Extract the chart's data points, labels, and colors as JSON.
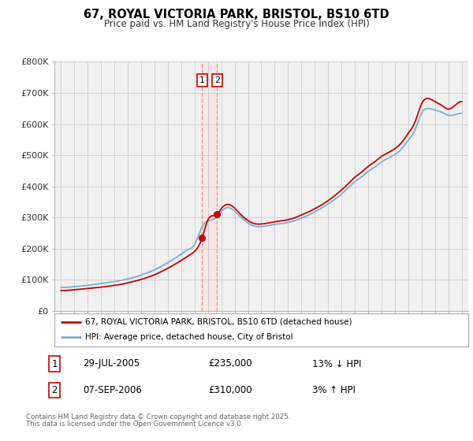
{
  "title": "67, ROYAL VICTORIA PARK, BRISTOL, BS10 6TD",
  "subtitle": "Price paid vs. HM Land Registry's House Price Index (HPI)",
  "legend_line1": "67, ROYAL VICTORIA PARK, BRISTOL, BS10 6TD (detached house)",
  "legend_line2": "HPI: Average price, detached house, City of Bristol",
  "footnote1": "Contains HM Land Registry data © Crown copyright and database right 2025.",
  "footnote2": "This data is licensed under the Open Government Licence v3.0.",
  "sale1_date": "29-JUL-2005",
  "sale1_price": "£235,000",
  "sale1_hpi": "13% ↓ HPI",
  "sale1_year": 2005.57,
  "sale1_value": 235000,
  "sale2_date": "07-SEP-2006",
  "sale2_price": "£310,000",
  "sale2_hpi": "3% ↑ HPI",
  "sale2_year": 2006.69,
  "sale2_value": 310000,
  "red_color": "#cc0000",
  "blue_color": "#7ab0d4",
  "vline_color": "#ee9999",
  "grid_color": "#cccccc",
  "bg_color": "#ffffff",
  "plot_bg_color": "#f0f0f0",
  "ylim": [
    0,
    800000
  ],
  "yticks": [
    0,
    100000,
    200000,
    300000,
    400000,
    500000,
    600000,
    700000,
    800000
  ],
  "ytick_labels": [
    "£0",
    "£100K",
    "£200K",
    "£300K",
    "£400K",
    "£500K",
    "£600K",
    "£700K",
    "£800K"
  ],
  "xlim_start": 1994.5,
  "xlim_end": 2025.5,
  "hpi_x": [
    1995,
    1995.5,
    1996,
    1996.5,
    1997,
    1997.5,
    1998,
    1998.5,
    1999,
    1999.5,
    2000,
    2000.5,
    2001,
    2001.5,
    2002,
    2002.5,
    2003,
    2003.5,
    2004,
    2004.5,
    2005,
    2005.57,
    2006,
    2006.69,
    2007,
    2007.5,
    2008,
    2008.5,
    2009,
    2009.5,
    2010,
    2010.5,
    2011,
    2011.5,
    2012,
    2012.5,
    2013,
    2013.5,
    2014,
    2014.5,
    2015,
    2015.5,
    2016,
    2016.5,
    2017,
    2017.5,
    2018,
    2018.5,
    2019,
    2019.5,
    2020,
    2020.5,
    2021,
    2021.5,
    2022,
    2022.5,
    2023,
    2023.5,
    2024,
    2024.5,
    2025
  ],
  "hpi_y": [
    75000,
    76000,
    78000,
    80000,
    82000,
    85000,
    88000,
    91000,
    94000,
    98000,
    103000,
    108000,
    115000,
    123000,
    132000,
    143000,
    155000,
    168000,
    182000,
    197000,
    213000,
    270000,
    289000,
    301000,
    318000,
    332000,
    320000,
    300000,
    282000,
    272000,
    271000,
    274000,
    278000,
    280000,
    284000,
    290000,
    298000,
    307000,
    318000,
    330000,
    343000,
    358000,
    375000,
    395000,
    415000,
    430000,
    448000,
    462000,
    478000,
    490000,
    502000,
    520000,
    548000,
    580000,
    635000,
    650000,
    645000,
    638000,
    628000,
    630000,
    635000
  ],
  "red_x": [
    1995,
    1995.5,
    1996,
    1996.5,
    1997,
    1997.5,
    1998,
    1998.5,
    1999,
    1999.5,
    2000,
    2000.5,
    2001,
    2001.5,
    2002,
    2002.5,
    2003,
    2003.5,
    2004,
    2004.5,
    2005,
    2005.57,
    2006,
    2006.69,
    2007,
    2007.5,
    2008,
    2008.5,
    2009,
    2009.5,
    2010,
    2010.5,
    2011,
    2011.5,
    2012,
    2012.5,
    2013,
    2013.5,
    2014,
    2014.5,
    2015,
    2015.5,
    2016,
    2016.5,
    2017,
    2017.5,
    2018,
    2018.5,
    2019,
    2019.5,
    2020,
    2020.5,
    2021,
    2021.5,
    2022,
    2022.5,
    2023,
    2023.5,
    2024,
    2024.5,
    2025
  ],
  "red_y": [
    65000,
    66000,
    68000,
    70000,
    72000,
    74000,
    76000,
    79000,
    82000,
    85000,
    90000,
    95000,
    101000,
    108000,
    116000,
    126000,
    137000,
    149000,
    162000,
    176000,
    191000,
    235000,
    292000,
    310000,
    328000,
    342000,
    330000,
    308000,
    290000,
    280000,
    279000,
    282000,
    286000,
    289000,
    293000,
    299000,
    308000,
    317000,
    328000,
    340000,
    354000,
    370000,
    388000,
    408000,
    429000,
    445000,
    464000,
    479000,
    496000,
    508000,
    521000,
    540000,
    570000,
    605000,
    665000,
    682000,
    672000,
    660000,
    648000,
    660000,
    672000
  ]
}
